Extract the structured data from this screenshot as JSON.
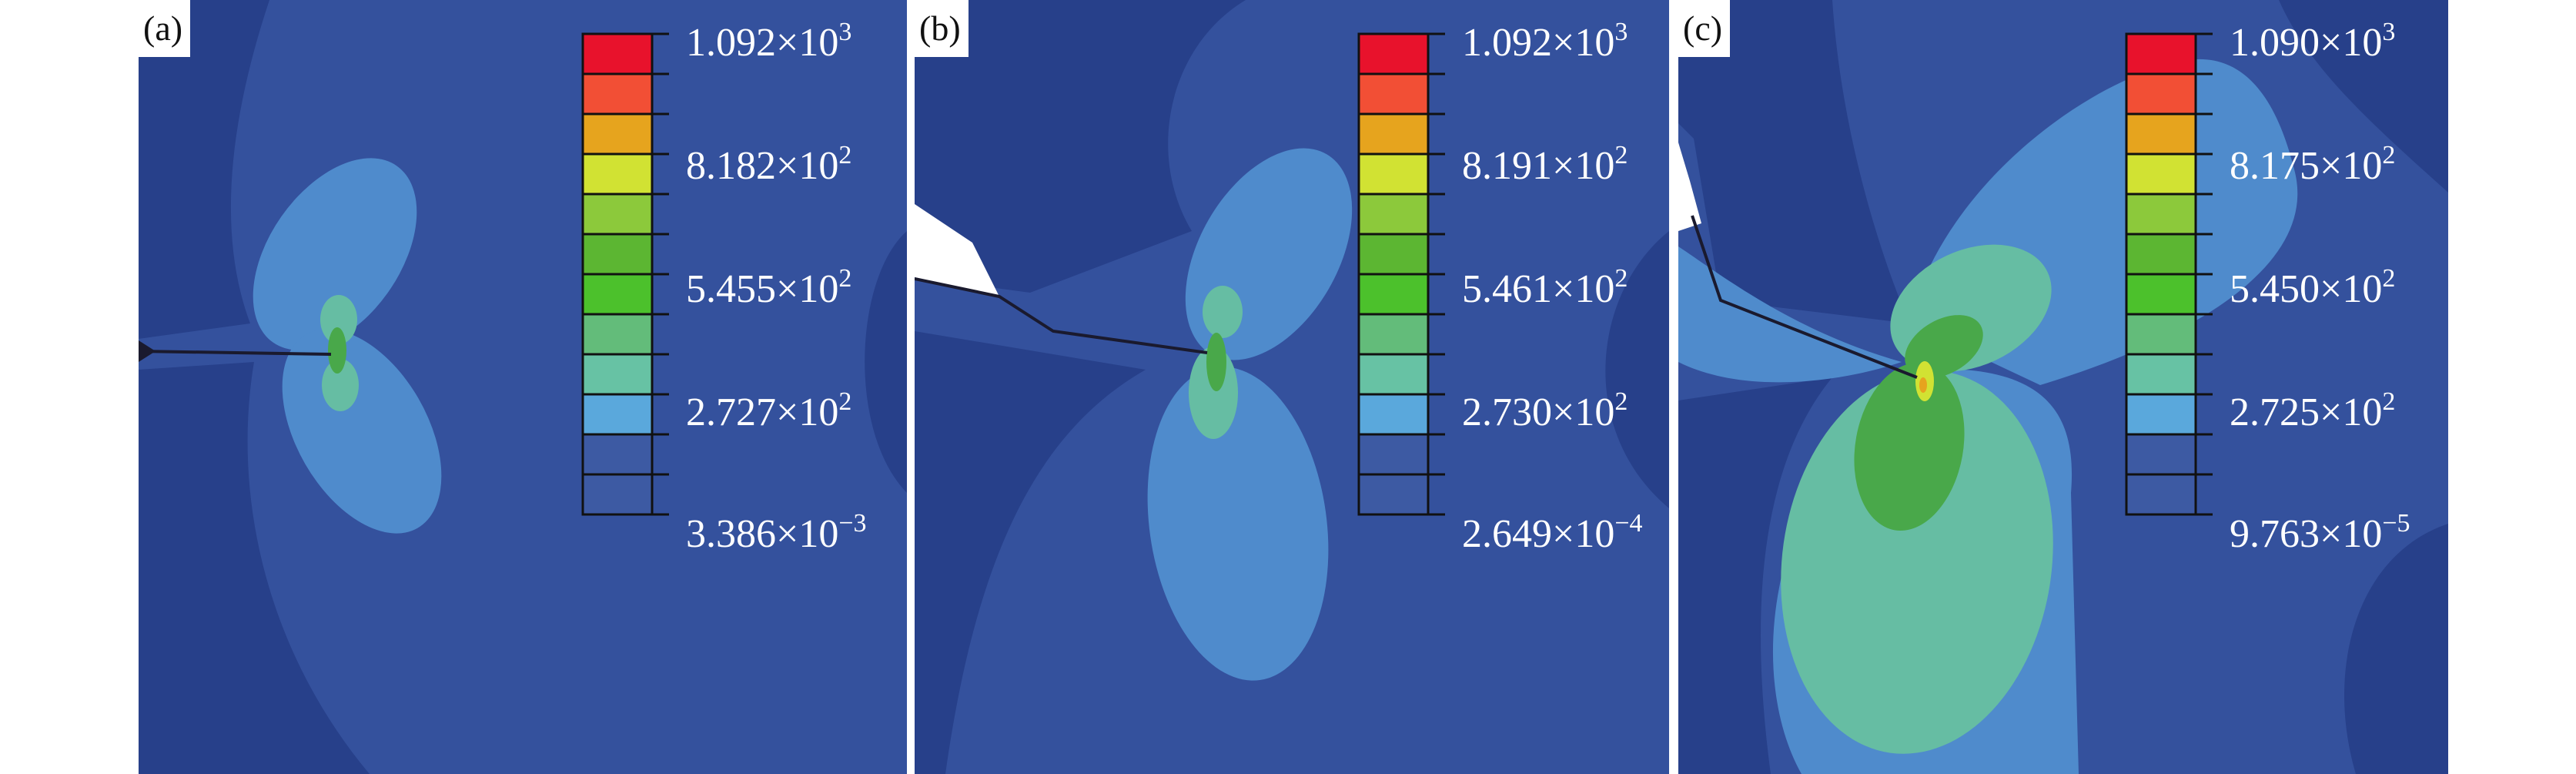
{
  "colors": {
    "background": "#ffffff",
    "legend": [
      "#e8122c",
      "#f24f35",
      "#e6a41e",
      "#d1e233",
      "#8cc93b",
      "#5cb632",
      "#4cc12c",
      "#63bc7a",
      "#67c2a4",
      "#5aa8dc",
      "#3d5aa3",
      "#3d5aa3"
    ],
    "field_dark": "#27408a",
    "field_mid": "#34519d",
    "field_light": "#4f8bcc",
    "field_teal": "#66bda3",
    "field_green": "#49a84a",
    "crack": "#1a1a2e",
    "notch": "#ffffff"
  },
  "panels": [
    {
      "label": "(a)",
      "legend_ticks": [
        {
          "mantissa": "1.092×10",
          "exponent": "3"
        },
        {
          "mantissa": "8.182×10",
          "exponent": "2"
        },
        {
          "mantissa": "5.455×10",
          "exponent": "2"
        },
        {
          "mantissa": "2.727×10",
          "exponent": "2"
        },
        {
          "mantissa": "3.386×10",
          "exponent": "−3"
        }
      ]
    },
    {
      "label": "(b)",
      "legend_ticks": [
        {
          "mantissa": "1.092×10",
          "exponent": "3"
        },
        {
          "mantissa": "8.191×10",
          "exponent": "2"
        },
        {
          "mantissa": "5.461×10",
          "exponent": "2"
        },
        {
          "mantissa": "2.730×10",
          "exponent": "2"
        },
        {
          "mantissa": "2.649×10",
          "exponent": "−4"
        }
      ]
    },
    {
      "label": "(c)",
      "legend_ticks": [
        {
          "mantissa": "1.090×10",
          "exponent": "3"
        },
        {
          "mantissa": "8.175×10",
          "exponent": "2"
        },
        {
          "mantissa": "5.450×10",
          "exponent": "2"
        },
        {
          "mantissa": "2.725×10",
          "exponent": "2"
        },
        {
          "mantissa": "9.763×10",
          "exponent": "−5"
        }
      ]
    }
  ]
}
